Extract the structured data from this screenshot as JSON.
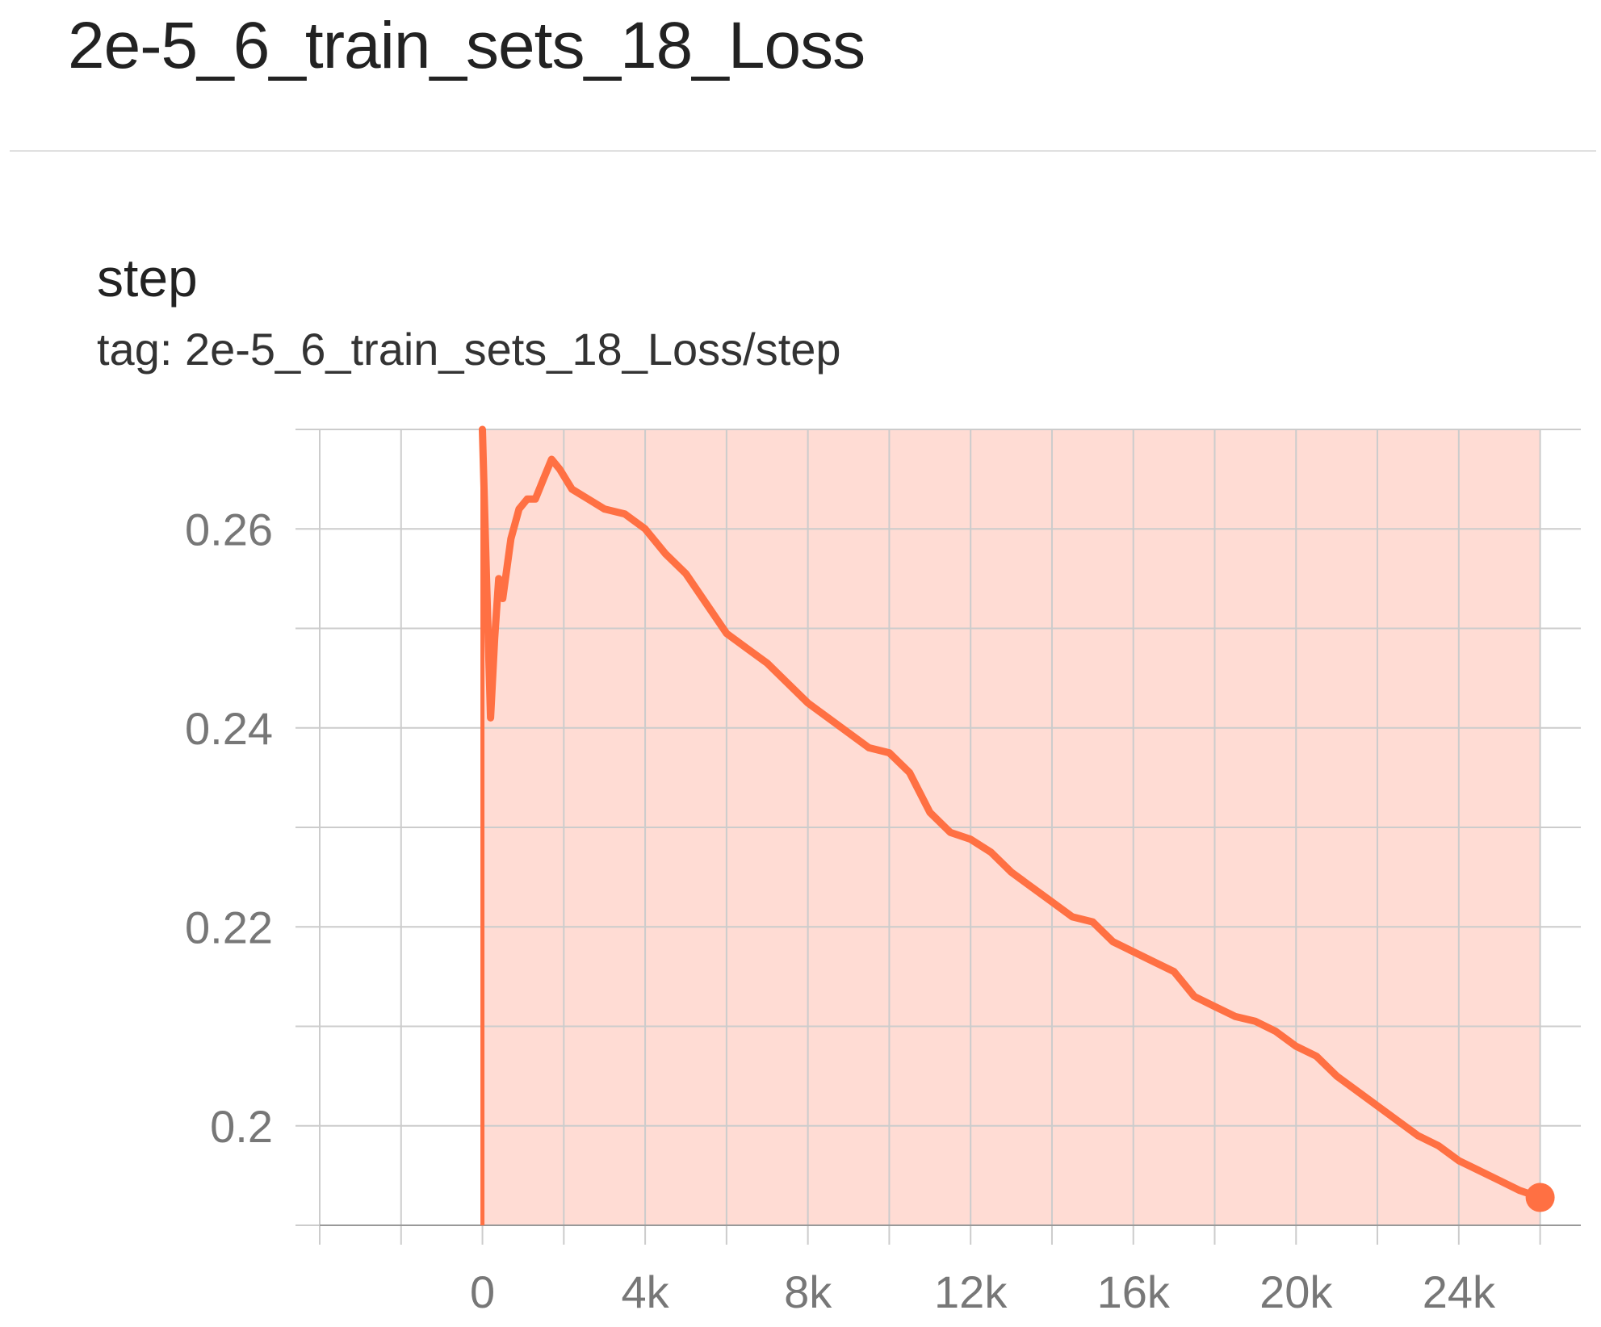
{
  "page_title": "2e-5_6_train_sets_18_Loss",
  "card": {
    "title": "step",
    "tag": "tag: 2e-5_6_train_sets_18_Loss/step"
  },
  "colors": {
    "smoothed_line": "#ff7043",
    "raw_fill": "#ffd6cc",
    "grid": "#cccccc",
    "text": "#222222",
    "tick_text": "#777777"
  },
  "chart_data": {
    "type": "line",
    "title": "step",
    "xlabel": "",
    "ylabel": "",
    "x_ticks": [
      0,
      4000,
      8000,
      12000,
      16000,
      20000,
      24000
    ],
    "x_tick_labels": [
      "0",
      "4k",
      "8k",
      "12k",
      "16k",
      "20k",
      "24k"
    ],
    "y_ticks": [
      0.2,
      0.22,
      0.24,
      0.26
    ],
    "y_tick_labels": [
      "0.2",
      "0.22",
      "0.24",
      "0.26"
    ],
    "xlim": [
      -4000,
      27000
    ],
    "ylim": [
      0.19,
      0.27
    ],
    "grid": true,
    "series": [
      {
        "values_x": [
          0,
          100,
          200,
          300,
          400,
          500,
          700,
          900,
          1100,
          1300,
          1500,
          1700,
          1900,
          2200,
          2600,
          3000,
          3500,
          4000,
          4500,
          5000,
          5500,
          6000,
          6500,
          7000,
          7500,
          8000,
          8500,
          9000,
          9500,
          10000,
          10500,
          11000,
          11500,
          12000,
          12500,
          13000,
          13500,
          14000,
          14500,
          15000,
          15500,
          16000,
          16500,
          17000,
          17500,
          18000,
          18500,
          19000,
          19500,
          20000,
          20500,
          21000,
          21500,
          22000,
          22500,
          23000,
          23500,
          24000,
          24500,
          25000,
          25500,
          26000
        ],
        "values_y": [
          0.27,
          0.255,
          0.241,
          0.249,
          0.255,
          0.253,
          0.259,
          0.262,
          0.263,
          0.263,
          0.265,
          0.267,
          0.266,
          0.264,
          0.263,
          0.262,
          0.2615,
          0.26,
          0.2575,
          0.2555,
          0.2525,
          0.2495,
          0.248,
          0.2465,
          0.2445,
          0.2425,
          0.241,
          0.2395,
          0.238,
          0.2375,
          0.2355,
          0.2315,
          0.2295,
          0.2288,
          0.2275,
          0.2255,
          0.224,
          0.2225,
          0.221,
          0.2205,
          0.2185,
          0.2175,
          0.2165,
          0.2155,
          0.213,
          0.212,
          0.211,
          0.2105,
          0.2095,
          0.208,
          0.207,
          0.205,
          0.2035,
          0.202,
          0.2005,
          0.199,
          0.198,
          0.1965,
          0.1955,
          0.1945,
          0.1935,
          0.1928
        ]
      }
    ]
  }
}
